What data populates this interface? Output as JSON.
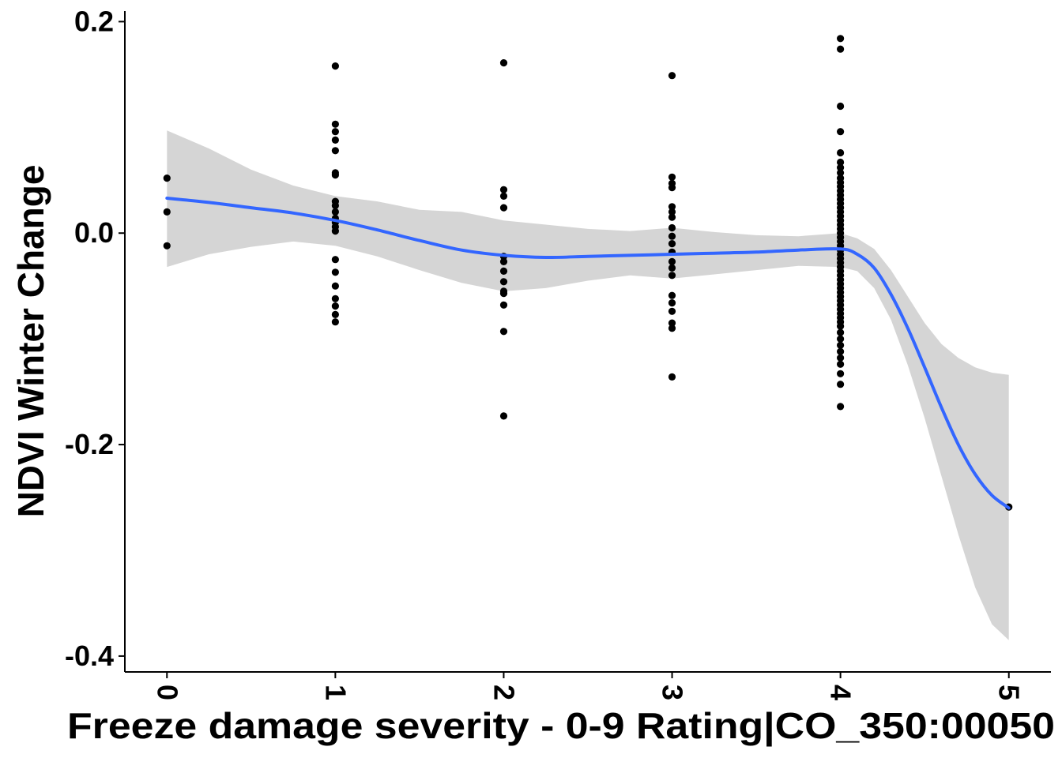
{
  "chart_data": {
    "type": "scatter",
    "title": "",
    "xlabel": "Freeze damage severity - 0-9 Rating|CO_350:00050",
    "ylabel": "NDVI Winter Change",
    "xlim": [
      -0.25,
      5.25
    ],
    "ylim": [
      -0.415,
      0.21
    ],
    "x_ticks": [
      0,
      1,
      2,
      3,
      4,
      5
    ],
    "x_tick_labels": [
      "0",
      "1",
      "2",
      "3",
      "4",
      "5"
    ],
    "y_ticks": [
      0.2,
      0.0,
      -0.2,
      -0.4
    ],
    "y_tick_labels": [
      "0.2",
      "0.0",
      "-0.2",
      "-0.4"
    ],
    "x_tick_rotation": 90,
    "grid": false,
    "legend": "none",
    "colors": {
      "points": "#000000",
      "smooth_line": "#3366ff",
      "ribbon": "#d3d3d3"
    },
    "points": [
      {
        "x": 0,
        "y": 0.052
      },
      {
        "x": 0,
        "y": 0.02
      },
      {
        "x": 0,
        "y": -0.012
      },
      {
        "x": 1,
        "y": 0.158
      },
      {
        "x": 1,
        "y": 0.103
      },
      {
        "x": 1,
        "y": 0.096
      },
      {
        "x": 1,
        "y": 0.088
      },
      {
        "x": 1,
        "y": 0.078
      },
      {
        "x": 1,
        "y": 0.057
      },
      {
        "x": 1,
        "y": 0.055
      },
      {
        "x": 1,
        "y": 0.03
      },
      {
        "x": 1,
        "y": 0.026
      },
      {
        "x": 1,
        "y": 0.02
      },
      {
        "x": 1,
        "y": 0.014
      },
      {
        "x": 1,
        "y": 0.01
      },
      {
        "x": 1,
        "y": 0.006
      },
      {
        "x": 1,
        "y": 0.002
      },
      {
        "x": 1,
        "y": -0.025
      },
      {
        "x": 1,
        "y": -0.037
      },
      {
        "x": 1,
        "y": -0.05
      },
      {
        "x": 1,
        "y": -0.062
      },
      {
        "x": 1,
        "y": -0.069
      },
      {
        "x": 1,
        "y": -0.077
      },
      {
        "x": 1,
        "y": -0.084
      },
      {
        "x": 2,
        "y": 0.161
      },
      {
        "x": 2,
        "y": 0.041
      },
      {
        "x": 2,
        "y": 0.035
      },
      {
        "x": 2,
        "y": 0.024
      },
      {
        "x": 2,
        "y": -0.022
      },
      {
        "x": 2,
        "y": -0.027
      },
      {
        "x": 2,
        "y": -0.036
      },
      {
        "x": 2,
        "y": -0.046
      },
      {
        "x": 2,
        "y": -0.055
      },
      {
        "x": 2,
        "y": -0.057
      },
      {
        "x": 2,
        "y": -0.068
      },
      {
        "x": 2,
        "y": -0.093
      },
      {
        "x": 2,
        "y": -0.173
      },
      {
        "x": 3,
        "y": 0.149
      },
      {
        "x": 3,
        "y": 0.053
      },
      {
        "x": 3,
        "y": 0.047
      },
      {
        "x": 3,
        "y": 0.043
      },
      {
        "x": 3,
        "y": 0.025
      },
      {
        "x": 3,
        "y": 0.02
      },
      {
        "x": 3,
        "y": 0.015
      },
      {
        "x": 3,
        "y": 0.005
      },
      {
        "x": 3,
        "y": -0.003
      },
      {
        "x": 3,
        "y": -0.01
      },
      {
        "x": 3,
        "y": -0.018
      },
      {
        "x": 3,
        "y": -0.027
      },
      {
        "x": 3,
        "y": -0.033
      },
      {
        "x": 3,
        "y": -0.04
      },
      {
        "x": 3,
        "y": -0.059
      },
      {
        "x": 3,
        "y": -0.066
      },
      {
        "x": 3,
        "y": -0.074
      },
      {
        "x": 3,
        "y": -0.085
      },
      {
        "x": 3,
        "y": -0.09
      },
      {
        "x": 3,
        "y": -0.136
      },
      {
        "x": 4,
        "y": 0.184
      },
      {
        "x": 4,
        "y": 0.174
      },
      {
        "x": 4,
        "y": 0.12
      },
      {
        "x": 4,
        "y": 0.096
      },
      {
        "x": 4,
        "y": 0.076
      },
      {
        "x": 4,
        "y": 0.067
      },
      {
        "x": 4,
        "y": 0.062
      },
      {
        "x": 4,
        "y": 0.057
      },
      {
        "x": 4,
        "y": 0.052
      },
      {
        "x": 4,
        "y": 0.048
      },
      {
        "x": 4,
        "y": 0.044
      },
      {
        "x": 4,
        "y": 0.04
      },
      {
        "x": 4,
        "y": 0.036
      },
      {
        "x": 4,
        "y": 0.032
      },
      {
        "x": 4,
        "y": 0.028
      },
      {
        "x": 4,
        "y": 0.024
      },
      {
        "x": 4,
        "y": 0.02
      },
      {
        "x": 4,
        "y": 0.016
      },
      {
        "x": 4,
        "y": 0.012
      },
      {
        "x": 4,
        "y": 0.008
      },
      {
        "x": 4,
        "y": 0.004
      },
      {
        "x": 4,
        "y": 0.0
      },
      {
        "x": 4,
        "y": -0.004
      },
      {
        "x": 4,
        "y": -0.008
      },
      {
        "x": 4,
        "y": -0.012
      },
      {
        "x": 4,
        "y": -0.016
      },
      {
        "x": 4,
        "y": -0.02
      },
      {
        "x": 4,
        "y": -0.024
      },
      {
        "x": 4,
        "y": -0.028
      },
      {
        "x": 4,
        "y": -0.032
      },
      {
        "x": 4,
        "y": -0.036
      },
      {
        "x": 4,
        "y": -0.04
      },
      {
        "x": 4,
        "y": -0.044
      },
      {
        "x": 4,
        "y": -0.048
      },
      {
        "x": 4,
        "y": -0.052
      },
      {
        "x": 4,
        "y": -0.056
      },
      {
        "x": 4,
        "y": -0.06
      },
      {
        "x": 4,
        "y": -0.064
      },
      {
        "x": 4,
        "y": -0.068
      },
      {
        "x": 4,
        "y": -0.072
      },
      {
        "x": 4,
        "y": -0.076
      },
      {
        "x": 4,
        "y": -0.08
      },
      {
        "x": 4,
        "y": -0.084
      },
      {
        "x": 4,
        "y": -0.088
      },
      {
        "x": 4,
        "y": -0.094
      },
      {
        "x": 4,
        "y": -0.1
      },
      {
        "x": 4,
        "y": -0.106
      },
      {
        "x": 4,
        "y": -0.112
      },
      {
        "x": 4,
        "y": -0.118
      },
      {
        "x": 4,
        "y": -0.124
      },
      {
        "x": 4,
        "y": -0.133
      },
      {
        "x": 4,
        "y": -0.143
      },
      {
        "x": 4,
        "y": -0.164
      },
      {
        "x": 5,
        "y": -0.259
      }
    ],
    "smooth_line": {
      "x": [
        0,
        0.25,
        0.5,
        0.75,
        1,
        1.25,
        1.5,
        1.75,
        2,
        2.25,
        2.5,
        2.75,
        3,
        3.25,
        3.5,
        3.75,
        4,
        4.1,
        4.2,
        4.3,
        4.4,
        4.5,
        4.6,
        4.7,
        4.8,
        4.9,
        5
      ],
      "y": [
        0.033,
        0.029,
        0.024,
        0.019,
        0.012,
        0.003,
        -0.007,
        -0.016,
        -0.021,
        -0.023,
        -0.022,
        -0.021,
        -0.02,
        -0.019,
        -0.018,
        -0.016,
        -0.015,
        -0.02,
        -0.033,
        -0.058,
        -0.09,
        -0.127,
        -0.165,
        -0.2,
        -0.228,
        -0.248,
        -0.26
      ]
    },
    "ribbon": {
      "x": [
        0,
        0.25,
        0.5,
        0.75,
        1,
        1.25,
        1.5,
        1.75,
        2,
        2.25,
        2.5,
        2.75,
        3,
        3.25,
        3.5,
        3.75,
        4,
        4.1,
        4.2,
        4.3,
        4.4,
        4.5,
        4.6,
        4.7,
        4.8,
        4.9,
        5
      ],
      "upper": [
        0.097,
        0.08,
        0.06,
        0.045,
        0.035,
        0.03,
        0.022,
        0.02,
        0.012,
        0.008,
        0.004,
        0.002,
        0.005,
        0.001,
        -0.002,
        -0.003,
        0.0,
        -0.005,
        -0.015,
        -0.035,
        -0.06,
        -0.085,
        -0.105,
        -0.118,
        -0.127,
        -0.132,
        -0.134
      ],
      "lower": [
        -0.032,
        -0.02,
        -0.013,
        -0.008,
        -0.012,
        -0.022,
        -0.035,
        -0.047,
        -0.055,
        -0.052,
        -0.045,
        -0.04,
        -0.043,
        -0.039,
        -0.035,
        -0.031,
        -0.032,
        -0.036,
        -0.052,
        -0.082,
        -0.125,
        -0.175,
        -0.23,
        -0.285,
        -0.335,
        -0.37,
        -0.385
      ]
    }
  }
}
